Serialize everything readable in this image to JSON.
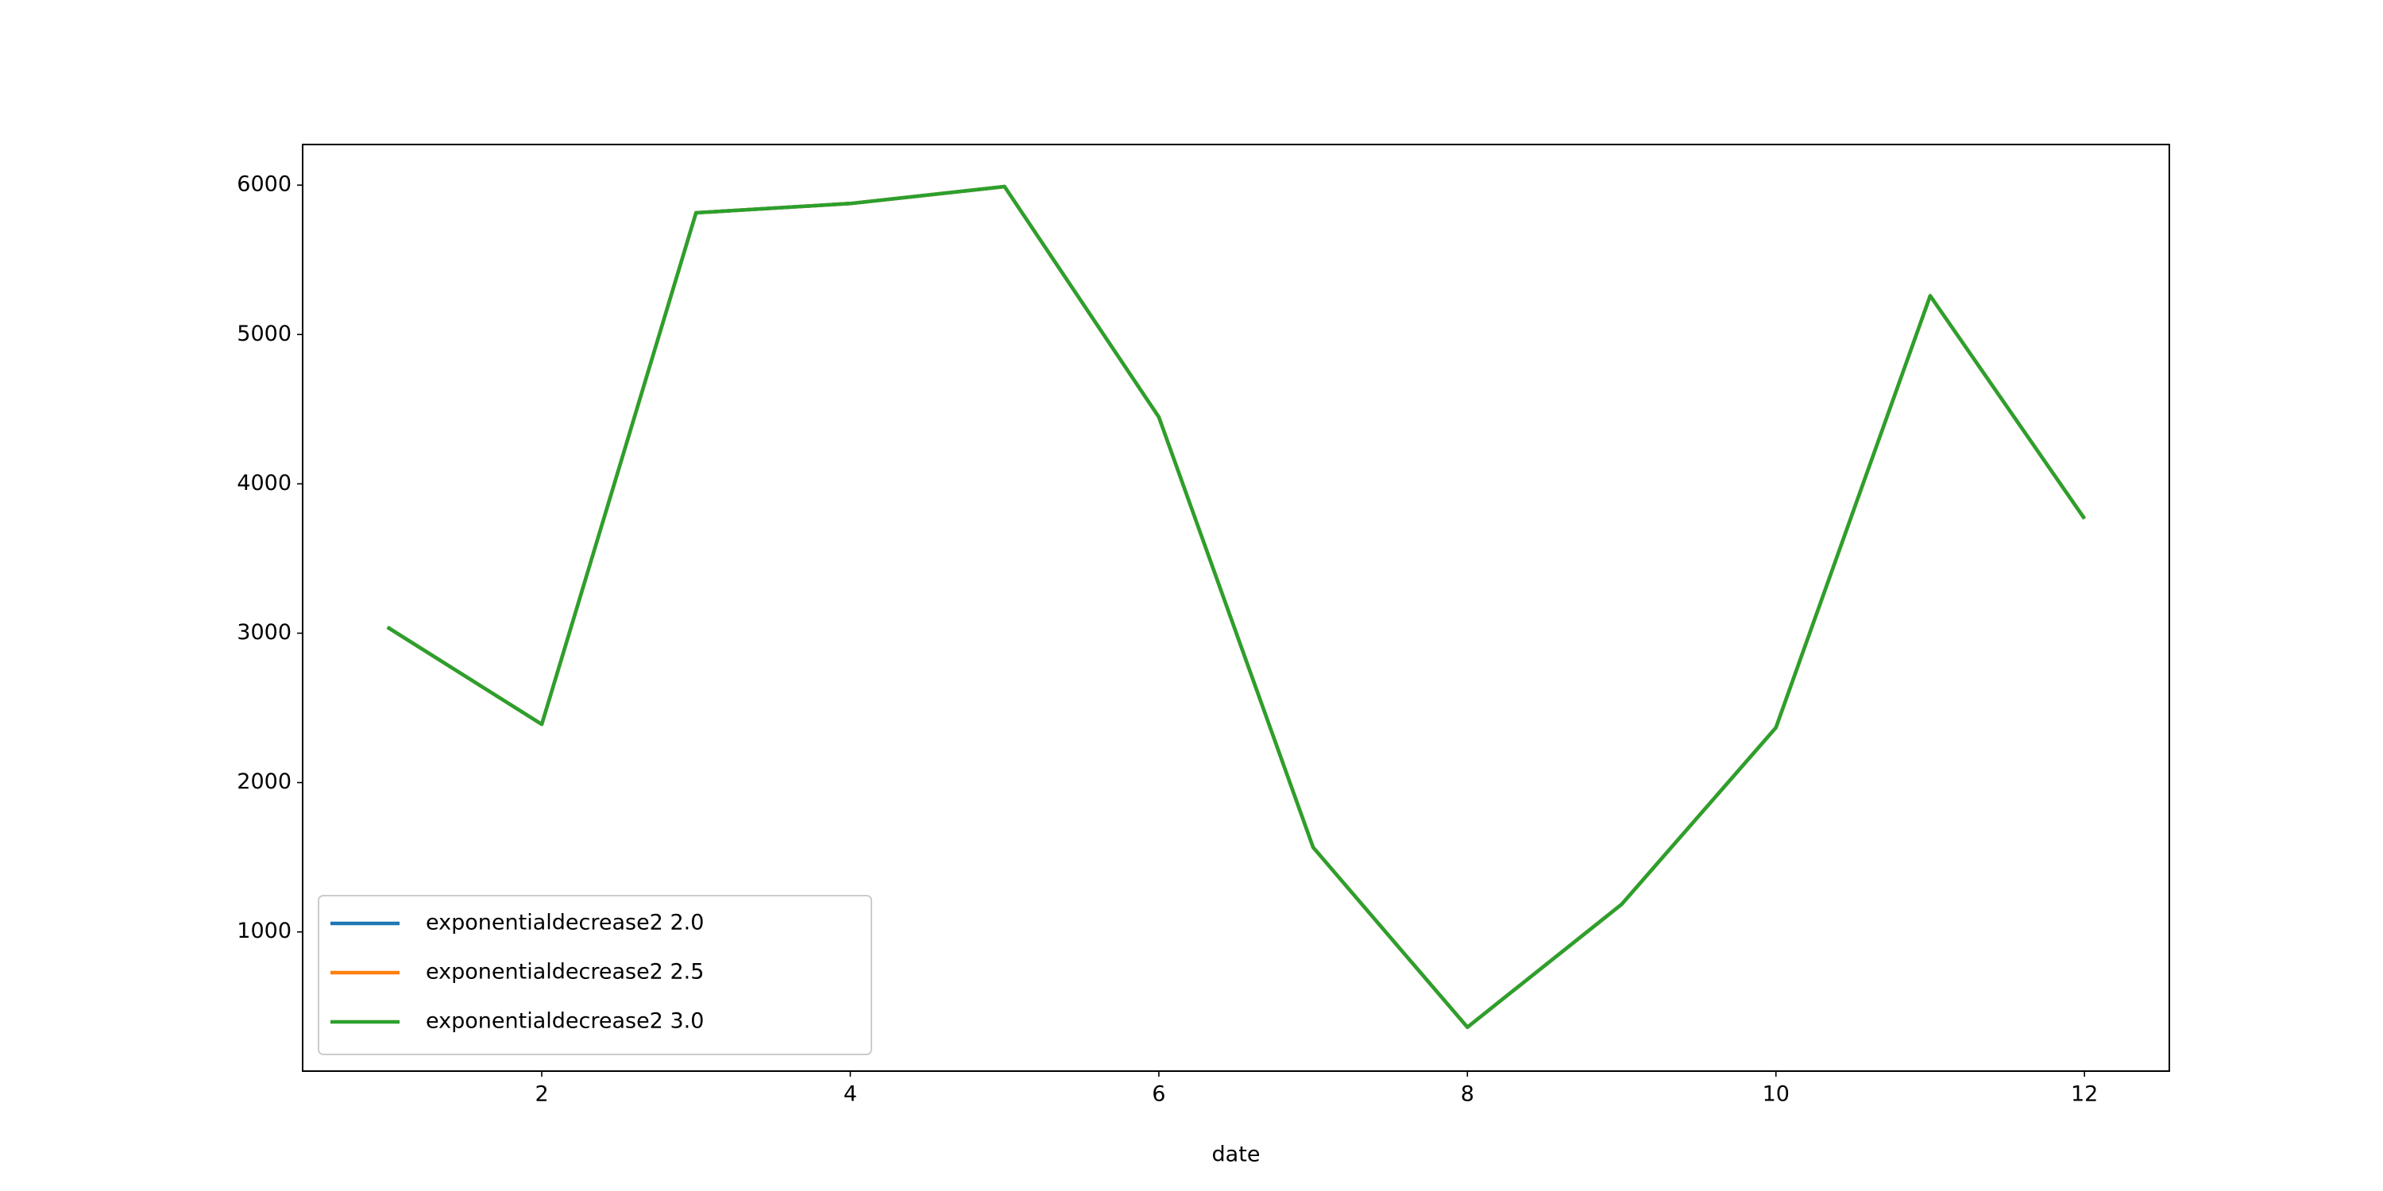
{
  "chart_data": {
    "type": "line",
    "x": [
      1,
      2,
      3,
      4,
      5,
      6,
      7,
      8,
      9,
      10,
      11,
      12
    ],
    "series": [
      {
        "name": "exponentialdecrease2 2.0",
        "color": "#1f77b4",
        "values": [
          3040,
          2390,
          5815,
          5877,
          5990,
          4447,
          1566,
          362,
          1185,
          2368,
          5259,
          3767
        ]
      },
      {
        "name": "exponentialdecrease2 2.5",
        "color": "#ff7f0e",
        "values": [
          3040,
          2390,
          5815,
          5877,
          5990,
          4447,
          1566,
          362,
          1185,
          2368,
          5259,
          3767
        ]
      },
      {
        "name": "exponentialdecrease2 3.0",
        "color": "#2ca02c",
        "values": [
          3040,
          2390,
          5815,
          5877,
          5990,
          4447,
          1566,
          362,
          1185,
          2368,
          5259,
          3767
        ]
      }
    ],
    "xlabel": "date",
    "xlim": [
      0.45,
      12.55
    ],
    "xticks": [
      2,
      4,
      6,
      8,
      10,
      12
    ],
    "ylim": [
      68,
      6272
    ],
    "yticks": [
      1000,
      2000,
      3000,
      4000,
      5000,
      6000
    ],
    "grid": false,
    "legend": "lower left"
  }
}
